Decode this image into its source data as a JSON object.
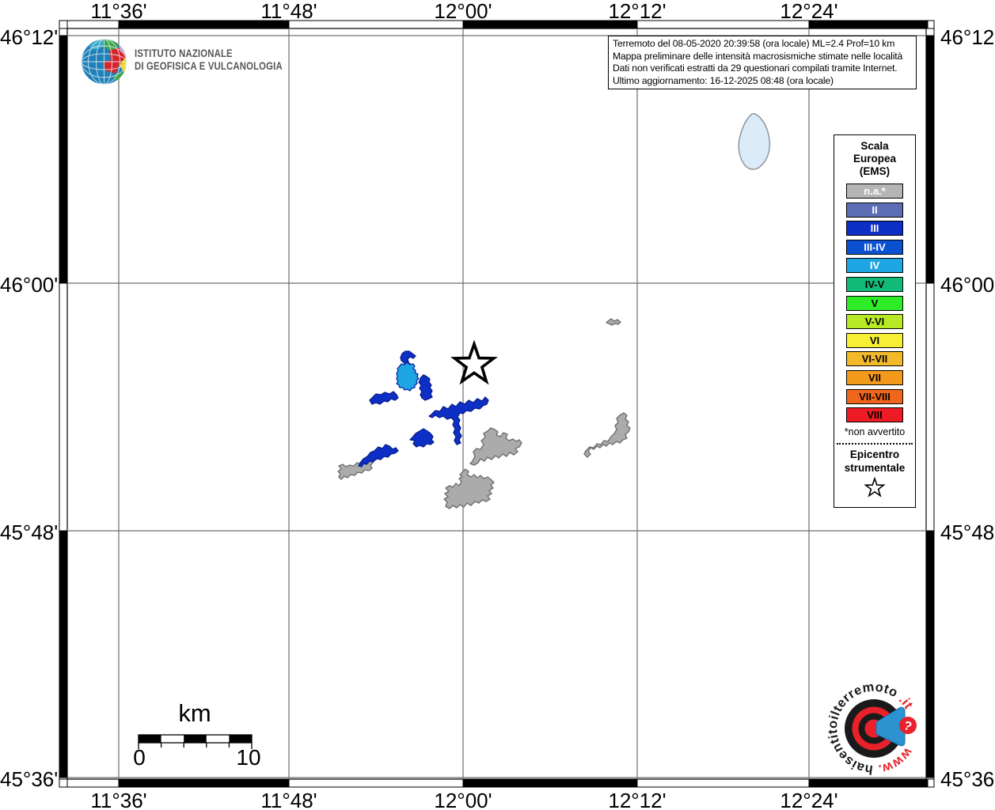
{
  "title_box": {
    "lines": [
      "Terremoto del 08-05-2020 20:39:58 (ora locale) ML=2.4 Prof=10 km",
      "Mappa preliminare delle intensità macrosismiche stimate nelle località",
      "Dati non verificati estratti da 29 questionari compilati tramite Internet.",
      "Ultimo aggiornamento: 16-12-2025 08:48 (ora locale)"
    ]
  },
  "branding": {
    "institute_line1": "ISTITUTO NAZIONALE",
    "institute_line2": "DI GEOFISICA E VULCANOLOGIA"
  },
  "axes": {
    "lon_labels": [
      "11°36'",
      "11°48'",
      "12°00'",
      "12°12'",
      "12°24'"
    ],
    "lat_labels": [
      "46°12'",
      "46°00'",
      "45°48'",
      "45°36'"
    ]
  },
  "legend": {
    "title_lines": [
      "Scala",
      "Europea",
      "(EMS)"
    ],
    "items": [
      {
        "label": "n.a.*",
        "color": "#b5b5b5",
        "text_color": "#ffffff"
      },
      {
        "label": "II",
        "color": "#5c6fb4",
        "text_color": "#ffffff"
      },
      {
        "label": "III",
        "color": "#0d2fc5",
        "text_color": "#ffffff"
      },
      {
        "label": "III-IV",
        "color": "#0b50d0",
        "text_color": "#ffffff"
      },
      {
        "label": "IV",
        "color": "#1da5e4",
        "text_color": "#ffffff"
      },
      {
        "label": "IV-V",
        "color": "#12ba78",
        "text_color": "#000000"
      },
      {
        "label": "V",
        "color": "#2eec28",
        "text_color": "#000000"
      },
      {
        "label": "V-VI",
        "color": "#b7e927",
        "text_color": "#000000"
      },
      {
        "label": "VI",
        "color": "#f7ef33",
        "text_color": "#000000"
      },
      {
        "label": "VI-VII",
        "color": "#f2ba2a",
        "text_color": "#000000"
      },
      {
        "label": "VII",
        "color": "#f39a1d",
        "text_color": "#000000"
      },
      {
        "label": "VII-VIII",
        "color": "#ef671c",
        "text_color": "#000000"
      },
      {
        "label": "VIII",
        "color": "#ed1c24",
        "text_color": "#000000"
      }
    ],
    "footnote": "*non avvertito",
    "epicenter_lines": [
      "Epicentro",
      "strumentale"
    ]
  },
  "scale_bar": {
    "unit": "km",
    "min": "0",
    "max": "10"
  },
  "site_logo": {
    "url_prefix": "www.",
    "url_main": "haisentitoilterremoto",
    "url_suffix": ".it",
    "badge": "?"
  },
  "colors": {
    "intensity_iii": "#0d2fc5",
    "intensity_iv": "#1da5e4",
    "not_felt_fill": "#ababab",
    "not_felt_outline": "#6e6e6e",
    "blue_outline": "#081d8f",
    "lake_fill": "#dcebf8",
    "lake_outline": "#8f979e"
  }
}
